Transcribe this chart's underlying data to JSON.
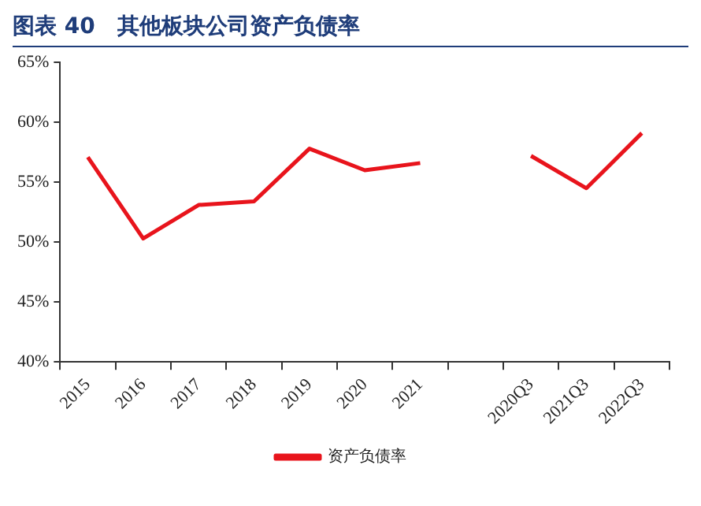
{
  "chart_data": {
    "type": "line",
    "title": "图表 40　其他板块公司资产负债率",
    "categories": [
      "2015",
      "2016",
      "2017",
      "2018",
      "2019",
      "2020",
      "2021",
      null,
      "2020Q3",
      "2021Q3",
      "2022Q3"
    ],
    "series": [
      {
        "name": "资产负债率",
        "color": "#e8141c",
        "values": [
          57.1,
          50.3,
          53.1,
          53.4,
          57.8,
          56.0,
          56.6,
          null,
          57.2,
          54.5,
          59.1
        ]
      }
    ],
    "ylim": [
      40,
      65
    ],
    "yticks": [
      {
        "value": 40,
        "label": "40%"
      },
      {
        "value": 45,
        "label": "45%"
      },
      {
        "value": 50,
        "label": "50%"
      },
      {
        "value": 55,
        "label": "55%"
      },
      {
        "value": 60,
        "label": "60%"
      },
      {
        "value": 65,
        "label": "65%"
      }
    ],
    "grid": false,
    "legend": "bottom",
    "marker": "none",
    "line_style": "solid"
  }
}
